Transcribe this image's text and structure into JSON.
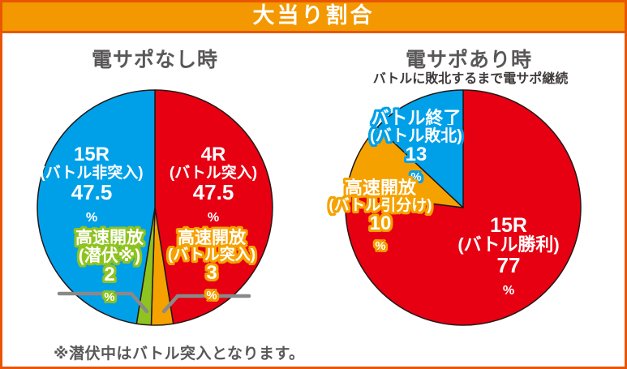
{
  "header": {
    "title": "大当り割合"
  },
  "percent_sign": "%",
  "note": "※潜伏中はバトル突入となります。",
  "colors": {
    "red": "#e60012",
    "blue": "#00a0e9",
    "orange": "#f5a200",
    "green": "#8fc31f",
    "header_bg": "#f39800",
    "frame_border": "#ea5504",
    "title_gray": "#595757",
    "subtitle_gray": "#3e3a39",
    "callout_gray": "#898989",
    "slice_outline": "#231815"
  },
  "chart_data": [
    {
      "type": "pie",
      "title": "電サポなし時",
      "unit": "%",
      "start_angle": "12-oclock",
      "direction": "clockwise",
      "slices": [
        {
          "name": "4R (バトル突入)",
          "value": 47.5,
          "pct": "47.5",
          "color": "#e60012",
          "label_lines": [
            "4R",
            "(バトル突入)"
          ]
        },
        {
          "name": "高速開放 (バトル突入)",
          "value": 3,
          "pct": "3",
          "color": "#f5a200",
          "label_lines": [
            "高速開放",
            "(バトル突入)"
          ]
        },
        {
          "name": "高速開放 (潜伏※)",
          "value": 2,
          "pct": "2",
          "color": "#8fc31f",
          "label_lines": [
            "高速開放",
            "(潜伏※)"
          ]
        },
        {
          "name": "15R (バトル非突入)",
          "value": 47.5,
          "pct": "47.5",
          "color": "#00a0e9",
          "label_lines": [
            "15R",
            "(バトル非突入)"
          ]
        }
      ]
    },
    {
      "type": "pie",
      "title": "電サポあり時",
      "subtitle": "バトルに敗北するまで電サポ継続",
      "unit": "%",
      "start_angle": "12-oclock",
      "direction": "clockwise",
      "slices": [
        {
          "name": "15R (バトル勝利)",
          "value": 77,
          "pct": "77",
          "color": "#e60012",
          "label_lines": [
            "15R",
            "(バトル勝利)"
          ]
        },
        {
          "name": "高速開放 (バトル引分け)",
          "value": 10,
          "pct": "10",
          "color": "#f5a200",
          "label_lines": [
            "高速開放",
            "(バトル引分け)"
          ]
        },
        {
          "name": "バトル終了 (バトル敗北)",
          "value": 13,
          "pct": "13",
          "color": "#00a0e9",
          "label_lines": [
            "バトル終了",
            "(バトル敗北)"
          ]
        }
      ]
    }
  ]
}
